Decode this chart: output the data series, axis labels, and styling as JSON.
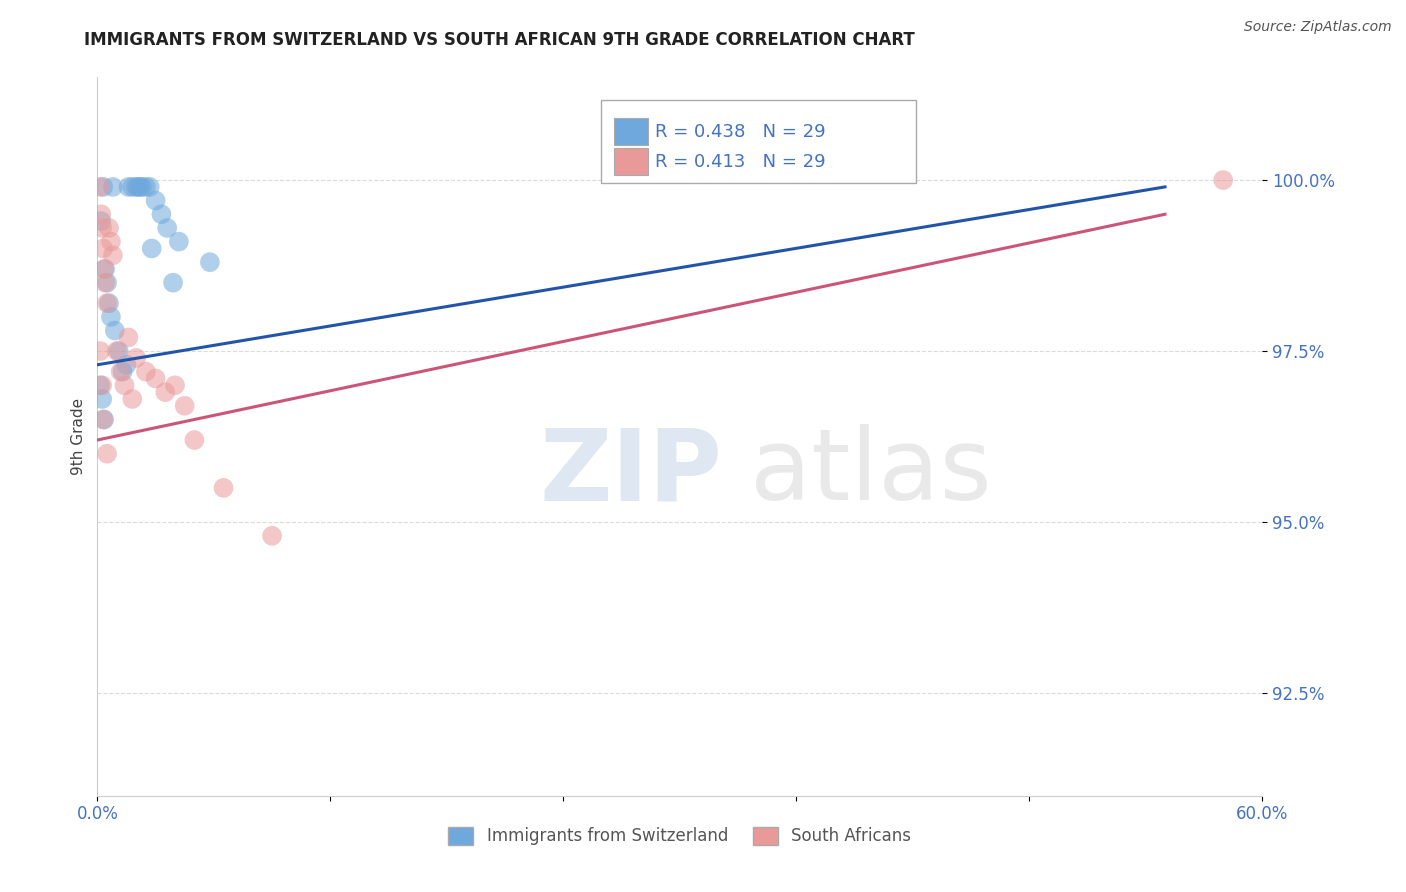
{
  "title": "IMMIGRANTS FROM SWITZERLAND VS SOUTH AFRICAN 9TH GRADE CORRELATION CHART",
  "source": "Source: ZipAtlas.com",
  "ylabel": "9th Grade",
  "xlim": [
    0.0,
    60.0
  ],
  "ylim": [
    91.0,
    101.5
  ],
  "yticks": [
    92.5,
    95.0,
    97.5,
    100.0
  ],
  "ytick_labels": [
    "92.5%",
    "95.0%",
    "97.5%",
    "100.0%"
  ],
  "xticks": [
    0.0,
    12.0,
    24.0,
    36.0,
    48.0,
    60.0
  ],
  "xtick_labels": [
    "0.0%",
    "",
    "",
    "",
    "",
    "60.0%"
  ],
  "R_blue": 0.438,
  "R_pink": 0.413,
  "N_blue": 29,
  "N_pink": 29,
  "blue_color": "#6fa8dc",
  "pink_color": "#ea9999",
  "line_blue": "#2255aa",
  "line_pink": "#cc5577",
  "legend_label_blue": "Immigrants from Switzerland",
  "legend_label_pink": "South Africans",
  "blue_x": [
    0.3,
    0.8,
    1.6,
    1.8,
    2.0,
    2.1,
    2.2,
    2.3,
    2.5,
    2.7,
    3.0,
    3.3,
    3.6,
    4.2,
    5.8,
    0.2,
    0.4,
    0.5,
    0.6,
    0.7,
    0.9,
    1.1,
    1.3,
    0.15,
    0.25,
    0.35,
    1.5,
    2.8,
    3.9
  ],
  "blue_y": [
    99.9,
    99.9,
    99.9,
    99.9,
    99.9,
    99.9,
    99.9,
    99.9,
    99.9,
    99.9,
    99.7,
    99.5,
    99.3,
    99.1,
    98.8,
    99.4,
    98.7,
    98.5,
    98.2,
    98.0,
    97.8,
    97.5,
    97.2,
    97.0,
    96.8,
    96.5,
    97.3,
    99.0,
    98.5
  ],
  "pink_x": [
    0.15,
    0.2,
    0.25,
    0.3,
    0.35,
    0.4,
    0.5,
    0.6,
    0.7,
    0.8,
    1.0,
    1.2,
    1.4,
    1.6,
    1.8,
    2.0,
    2.5,
    3.0,
    3.5,
    4.0,
    4.5,
    0.15,
    0.25,
    0.3,
    5.0,
    6.5,
    9.0,
    58.0,
    0.5
  ],
  "pink_y": [
    99.9,
    99.5,
    99.3,
    99.0,
    98.7,
    98.5,
    98.2,
    99.3,
    99.1,
    98.9,
    97.5,
    97.2,
    97.0,
    97.7,
    96.8,
    97.4,
    97.2,
    97.1,
    96.9,
    97.0,
    96.7,
    97.5,
    97.0,
    96.5,
    96.2,
    95.5,
    94.8,
    100.0,
    96.0
  ],
  "watermark_text": "ZIPatlas",
  "background_color": "#ffffff",
  "grid_color": "#cccccc",
  "blue_line_x0": 0.0,
  "blue_line_y0": 97.3,
  "blue_line_x1": 55.0,
  "blue_line_y1": 99.9,
  "pink_line_x0": 0.0,
  "pink_line_y0": 96.2,
  "pink_line_x1": 55.0,
  "pink_line_y1": 99.5
}
